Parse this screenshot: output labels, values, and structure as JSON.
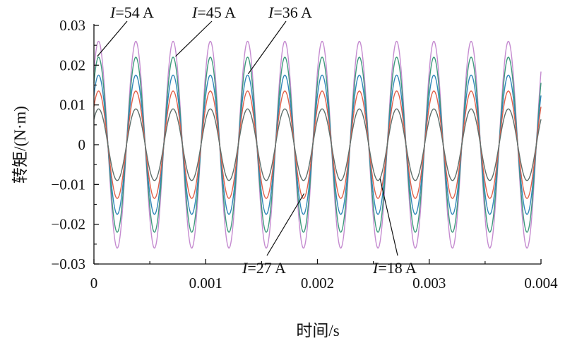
{
  "chart_data": {
    "type": "line",
    "xlabel": "时间/s",
    "ylabel": "转矩/(N·m)",
    "xlim": [
      0,
      0.004
    ],
    "ylim": [
      -0.03,
      0.03
    ],
    "xticks": [
      "0",
      "0.001",
      "0.002",
      "0.003",
      "0.004"
    ],
    "yticks": [
      "0.03",
      "0.02",
      "0.01",
      "0",
      "-0.01",
      "-0.02",
      "-0.03"
    ],
    "grid": false,
    "frequency_hz": 3000,
    "phase_deg": 45,
    "series": [
      {
        "name": "I=54 A",
        "current": "54",
        "amplitude": 0.026,
        "color": "#c58bd0"
      },
      {
        "name": "I=45 A",
        "current": "45",
        "amplitude": 0.022,
        "color": "#3e9a7c"
      },
      {
        "name": "I=36 A",
        "current": "36",
        "amplitude": 0.0175,
        "color": "#2f86b8"
      },
      {
        "name": "I=27 A",
        "current": "27",
        "amplitude": 0.0135,
        "color": "#e0604a"
      },
      {
        "name": "I=18 A",
        "current": "18",
        "amplitude": 0.009,
        "color": "#5e6e6a"
      }
    ],
    "annotations": [
      {
        "series": 0,
        "var": "I",
        "text": "=54 A",
        "point": [
          3e-05,
          0.0222
        ]
      },
      {
        "series": 1,
        "var": "I",
        "text": "=45 A",
        "point": [
          0.00073,
          0.0222
        ]
      },
      {
        "series": 2,
        "var": "I",
        "text": "=36 A",
        "point": [
          0.00138,
          0.0178
        ]
      },
      {
        "series": 3,
        "var": "I",
        "text": "=27 A",
        "point": [
          0.00188,
          -0.0123
        ]
      },
      {
        "series": 4,
        "var": "I",
        "text": "=18 A",
        "point": [
          0.00256,
          -0.0085
        ]
      }
    ]
  }
}
